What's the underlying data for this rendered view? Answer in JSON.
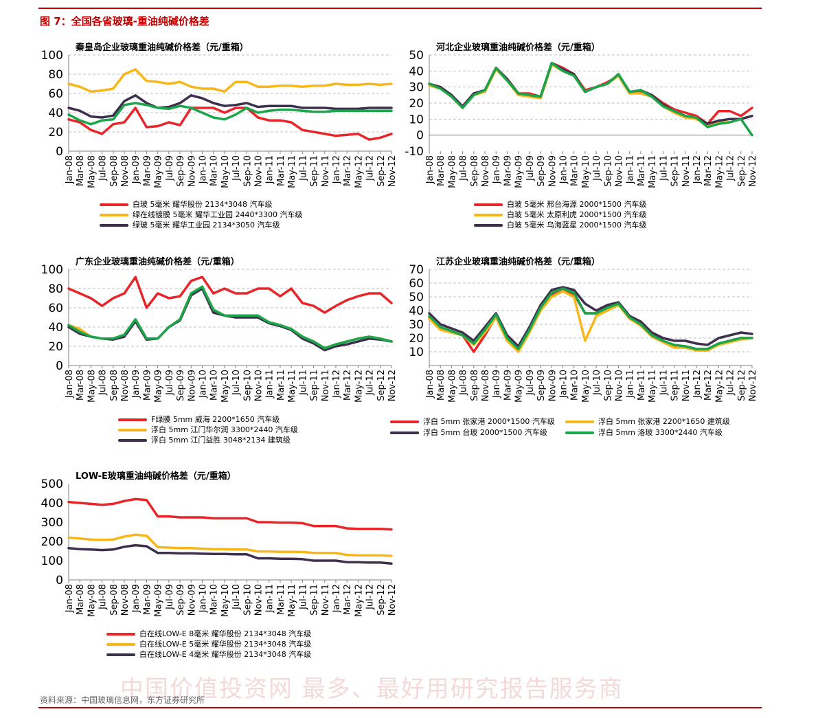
{
  "figure_title": "图 7：全国各省玻璃-重油纯碱价格差",
  "source_note": "资料来源：中国玻璃信息网，东方证券研究所",
  "watermark": "中国价值投资网  最多、最好用研究报告服务商",
  "colors": {
    "red": "#e8262a",
    "yellow": "#f7b71a",
    "dark": "#3e2f4d",
    "green": "#1aa64a",
    "grid": "#bfbfbf",
    "axis": "#7f7f7f"
  },
  "months": [
    "Jan-08",
    "Mar-08",
    "May-08",
    "Jul-08",
    "Sep-08",
    "Nov-08",
    "Jan-09",
    "Mar-09",
    "May-09",
    "Jul-09",
    "Sep-09",
    "Nov-09",
    "Jan-10",
    "Mar-10",
    "May-10",
    "Jul-10",
    "Sep-10",
    "Nov-10",
    "Jan-11",
    "Mar-11",
    "May-11",
    "Jul-11",
    "Sep-11",
    "Nov-11",
    "Jan-12",
    "Mar-12",
    "May-12",
    "Jul-12",
    "Sep-12",
    "Nov-12"
  ],
  "chart_data": [
    {
      "id": "qinhuangdao",
      "type": "line",
      "title": "秦皇岛企业玻璃重油纯碱价格差（元/重箱）",
      "ylim": [
        0,
        100
      ],
      "yticks": [
        0,
        20,
        40,
        60,
        80,
        100
      ],
      "grid": true,
      "legend_position": "bottom",
      "series": [
        {
          "name": "白玻  5毫米  耀华股份  2134*3048  汽车级",
          "color": "red",
          "values": [
            33,
            30,
            22,
            18,
            28,
            30,
            45,
            25,
            26,
            30,
            27,
            45,
            45,
            45,
            40,
            45,
            45,
            35,
            32,
            32,
            30,
            22,
            20,
            18,
            16,
            17,
            18,
            12,
            14,
            18
          ]
        },
        {
          "name": "绿在线镀膜  5毫米  耀华工业园  2440*3300  汽车级",
          "color": "yellow",
          "values": [
            70,
            67,
            62,
            63,
            65,
            80,
            85,
            73,
            72,
            70,
            72,
            67,
            65,
            65,
            62,
            72,
            72,
            67,
            67,
            68,
            68,
            67,
            68,
            68,
            70,
            69,
            69,
            70,
            69,
            70
          ]
        },
        {
          "name": "绿玻  5毫米  耀华工业园  2134*3050  汽车级",
          "color": "dark",
          "values": [
            45,
            42,
            36,
            35,
            37,
            52,
            58,
            50,
            45,
            46,
            50,
            58,
            55,
            50,
            47,
            48,
            50,
            46,
            47,
            47,
            47,
            45,
            45,
            45,
            44,
            44,
            44,
            45,
            45,
            45
          ]
        },
        {
          "name": "",
          "color": "green",
          "values": [
            38,
            32,
            28,
            32,
            33,
            48,
            50,
            48,
            45,
            44,
            47,
            45,
            40,
            35,
            33,
            38,
            45,
            40,
            42,
            43,
            43,
            42,
            41,
            41,
            42,
            42,
            42,
            42,
            42,
            42
          ]
        }
      ]
    },
    {
      "id": "hebei",
      "type": "line",
      "title": "河北企业玻璃重油纯碱价格差（元/重箱）",
      "ylim": [
        -10,
        50
      ],
      "yticks": [
        -10,
        0,
        10,
        20,
        30,
        40,
        50
      ],
      "grid": true,
      "legend_position": "bottom",
      "series": [
        {
          "name": "白玻  5毫米  邢台海源  2000*1500  汽车级",
          "color": "red",
          "values": [
            32,
            30,
            25,
            17,
            26,
            28,
            42,
            35,
            26,
            26,
            24,
            45,
            42,
            38,
            28,
            30,
            33,
            37,
            27,
            27,
            25,
            20,
            16,
            14,
            12,
            7,
            15,
            15,
            12,
            17
          ]
        },
        {
          "name": "白玻  5毫米  太原利虎  2000*1500  汽车级",
          "color": "yellow",
          "values": [
            31,
            29,
            24,
            17,
            25,
            27,
            41,
            34,
            25,
            24,
            23,
            44,
            40,
            37,
            27,
            30,
            32,
            37,
            26,
            26,
            24,
            18,
            14,
            11,
            10,
            6,
            8,
            8,
            10,
            12
          ]
        },
        {
          "name": "白玻  5毫米  乌海蓝星  2000*1500  汽车级",
          "color": "dark",
          "values": [
            32,
            30,
            25,
            18,
            26,
            28,
            42,
            35,
            26,
            25,
            24,
            45,
            41,
            38,
            27,
            30,
            32,
            38,
            27,
            28,
            25,
            19,
            15,
            12,
            11,
            7,
            9,
            10,
            10,
            12
          ]
        },
        {
          "name": "",
          "color": "green",
          "values": [
            32,
            29,
            24,
            17,
            25,
            28,
            42,
            34,
            26,
            25,
            24,
            45,
            40,
            37,
            27,
            30,
            32,
            38,
            27,
            28,
            24,
            18,
            15,
            12,
            11,
            5,
            7,
            8,
            10,
            0
          ]
        }
      ]
    },
    {
      "id": "guangdong",
      "type": "line",
      "title": "广东企业玻璃重油纯碱价格差（元/重箱）",
      "ylim": [
        0,
        100
      ],
      "yticks": [
        0,
        20,
        40,
        60,
        80,
        100
      ],
      "grid": true,
      "legend_position": "bottom",
      "series": [
        {
          "name": "F绿膜 5mm 威海 2200*1650 汽车级",
          "color": "red",
          "values": [
            80,
            75,
            70,
            62,
            70,
            75,
            92,
            60,
            75,
            70,
            72,
            88,
            92,
            75,
            80,
            75,
            75,
            80,
            80,
            72,
            80,
            65,
            62,
            55,
            62,
            68,
            72,
            75,
            75,
            65
          ]
        },
        {
          "name": "浮白 5mm 江门华尔润 3300*2440 汽车级",
          "color": "yellow",
          "values": [
            42,
            38,
            30,
            28,
            28,
            32,
            48,
            28,
            28,
            40,
            48,
            75,
            82,
            58,
            52,
            52,
            52,
            52,
            45,
            42,
            38,
            30,
            25,
            18,
            22,
            25,
            28,
            30,
            28,
            25
          ]
        },
        {
          "name": "浮白 5mm 江门益胜 3048*2134 建筑级",
          "color": "dark",
          "values": [
            40,
            33,
            30,
            28,
            27,
            30,
            46,
            27,
            28,
            40,
            47,
            73,
            80,
            55,
            52,
            50,
            50,
            50,
            44,
            41,
            37,
            28,
            23,
            16,
            20,
            22,
            25,
            28,
            27,
            25
          ]
        },
        {
          "name": "",
          "color": "green",
          "values": [
            42,
            35,
            30,
            28,
            28,
            32,
            48,
            28,
            28,
            40,
            48,
            75,
            82,
            58,
            52,
            52,
            52,
            52,
            45,
            42,
            38,
            30,
            25,
            18,
            22,
            25,
            28,
            30,
            28,
            25
          ]
        }
      ]
    },
    {
      "id": "jiangsu",
      "type": "line",
      "title": "江苏企业玻璃重油纯碱价格差（元/重箱）",
      "ylim": [
        0,
        70
      ],
      "yticks": [
        10,
        20,
        30,
        40,
        50,
        60,
        70
      ],
      "grid": true,
      "legend_position": "bottom",
      "series": [
        {
          "name": "浮白 5mm 张家港 2000*1500 汽车级",
          "color": "red",
          "values": [
            35,
            27,
            25,
            22,
            10,
            22,
            36,
            18,
            12,
            25,
            40,
            52,
            55,
            52,
            38,
            38,
            42,
            45,
            35,
            30,
            22,
            18,
            14,
            14,
            12,
            12,
            16,
            18,
            20,
            20
          ]
        },
        {
          "name": "浮白 5mm 张家港 2200*1650 建筑级",
          "color": "yellow",
          "values": [
            34,
            26,
            24,
            22,
            15,
            24,
            35,
            18,
            10,
            24,
            40,
            50,
            54,
            50,
            18,
            36,
            40,
            44,
            34,
            29,
            21,
            17,
            13,
            13,
            11,
            11,
            15,
            17,
            19,
            20
          ]
        },
        {
          "name": "浮白 5mm 台玻 2000*1500 汽车级",
          "color": "dark",
          "values": [
            38,
            30,
            27,
            24,
            18,
            28,
            38,
            22,
            14,
            28,
            44,
            55,
            57,
            55,
            45,
            40,
            44,
            46,
            36,
            32,
            24,
            20,
            18,
            18,
            16,
            15,
            20,
            22,
            24,
            23
          ]
        },
        {
          "name": "浮白 5mm 洛玻 3300*2440 汽车级",
          "color": "green",
          "values": [
            36,
            28,
            25,
            22,
            16,
            26,
            37,
            20,
            12,
            26,
            42,
            53,
            56,
            53,
            38,
            38,
            42,
            45,
            35,
            30,
            22,
            18,
            15,
            14,
            12,
            12,
            16,
            18,
            20,
            20
          ]
        }
      ]
    },
    {
      "id": "lowe",
      "type": "line",
      "title": "LOW-E玻璃重油纯碱价格差（元/重箱）",
      "ylim": [
        0,
        500
      ],
      "yticks": [
        0,
        100,
        200,
        300,
        400,
        500
      ],
      "grid": false,
      "legend_position": "bottom",
      "series": [
        {
          "name": "白在线LOW-E  8毫米  耀华股份  2134*3048  汽车级",
          "color": "red",
          "values": [
            405,
            400,
            395,
            390,
            395,
            410,
            420,
            415,
            330,
            330,
            325,
            325,
            325,
            320,
            320,
            320,
            320,
            300,
            300,
            298,
            298,
            295,
            280,
            280,
            280,
            268,
            265,
            265,
            265,
            262
          ]
        },
        {
          "name": "白在线LOW-E  5毫米  耀华股份  2134*3048  汽车级",
          "color": "yellow",
          "values": [
            220,
            215,
            210,
            208,
            210,
            225,
            235,
            230,
            170,
            168,
            165,
            165,
            162,
            160,
            160,
            158,
            158,
            148,
            148,
            146,
            146,
            145,
            140,
            140,
            140,
            130,
            128,
            128,
            128,
            125
          ]
        },
        {
          "name": "白在线LOW-E  4毫米  耀华股份  2134*3048  汽车级",
          "color": "dark",
          "values": [
            165,
            160,
            158,
            155,
            158,
            172,
            180,
            175,
            140,
            140,
            138,
            138,
            136,
            135,
            135,
            133,
            133,
            112,
            112,
            110,
            110,
            108,
            100,
            100,
            100,
            92,
            92,
            90,
            90,
            85
          ]
        }
      ]
    }
  ]
}
